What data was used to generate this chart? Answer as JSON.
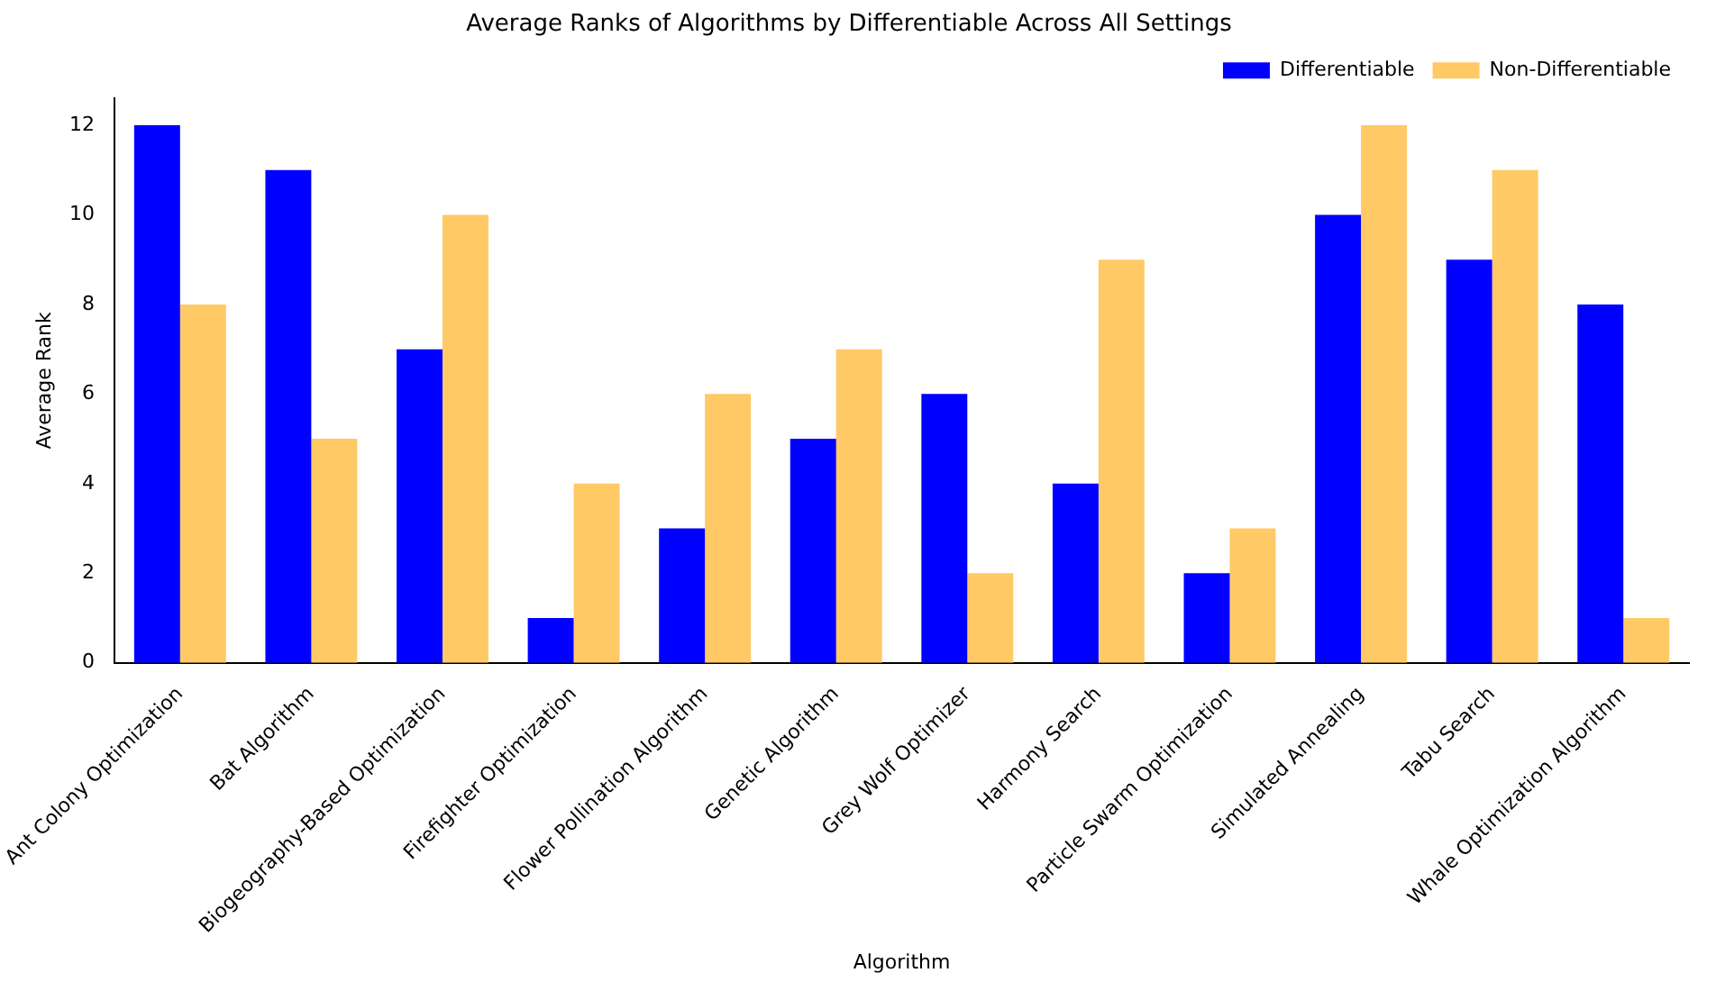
{
  "chart_data": {
    "type": "bar",
    "title": "Average Ranks of Algorithms by Differentiable Across All Settings",
    "xlabel": "Algorithm",
    "ylabel": "Average Rank",
    "categories": [
      "Ant Colony Optimization",
      "Bat Algorithm",
      "Biogeography-Based Optimization",
      "Firefighter Optimization",
      "Flower Pollination Algorithm",
      "Genetic Algorithm",
      "Grey Wolf Optimizer",
      "Harmony Search",
      "Particle Swarm Optimization",
      "Simulated Annealing",
      "Tabu Search",
      "Whale Optimization Algorithm"
    ],
    "series": [
      {
        "name": "Differentiable",
        "color": "#0000ff",
        "values": [
          12,
          11,
          7,
          1,
          3,
          5,
          6,
          4,
          2,
          10,
          9,
          8
        ]
      },
      {
        "name": "Non-Differentiable",
        "color": "#ffc966",
        "values": [
          8,
          5,
          10,
          4,
          6,
          7,
          2,
          9,
          3,
          12,
          11,
          1
        ]
      }
    ],
    "ylim": [
      0,
      12.6
    ],
    "yticks": [
      0,
      2,
      4,
      6,
      8,
      10,
      12
    ],
    "grid": false,
    "legend": "top right"
  }
}
